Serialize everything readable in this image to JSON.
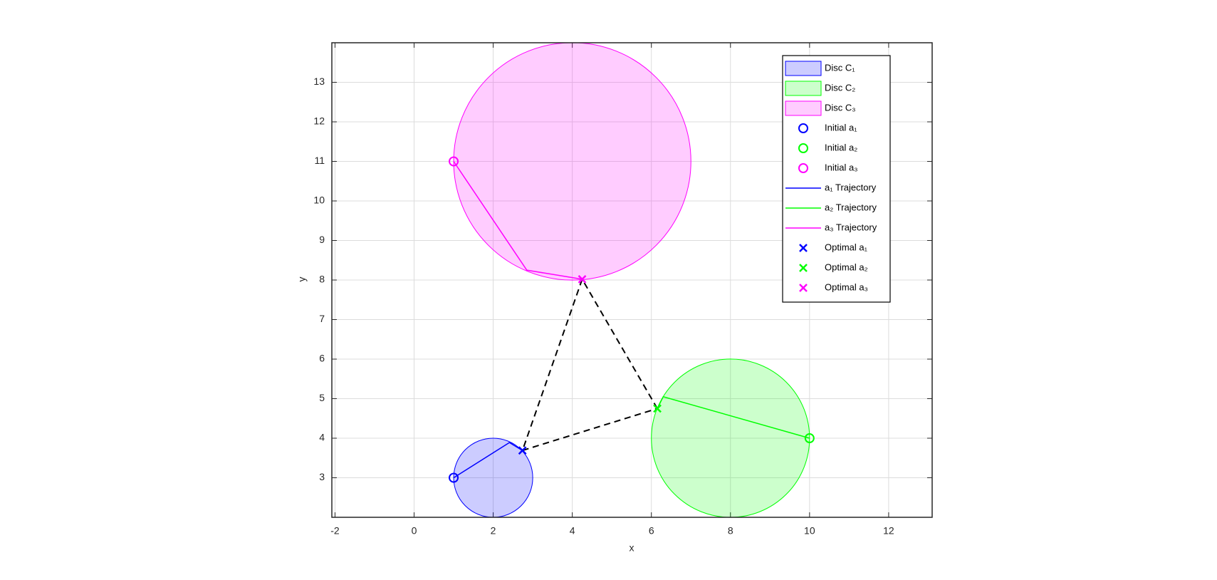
{
  "chart_data": {
    "type": "scatter",
    "xlabel": "x",
    "ylabel": "y",
    "xlim": [
      -2.08,
      13.1
    ],
    "ylim": [
      2,
      14
    ],
    "xticks": [
      -2,
      0,
      2,
      4,
      6,
      8,
      10,
      12
    ],
    "yticks": [
      3,
      4,
      5,
      6,
      7,
      8,
      9,
      10,
      11,
      12,
      13
    ],
    "grid": true,
    "legend": "top-right",
    "series": [
      {
        "name": "Disc C₁",
        "kind": "disc",
        "color": "#0000ff",
        "alpha": 0.2,
        "x": [
          2
        ],
        "values": [
          3
        ],
        "radius": 1
      },
      {
        "name": "Disc C₂",
        "kind": "disc",
        "color": "#00ff00",
        "alpha": 0.2,
        "x": [
          8
        ],
        "values": [
          4
        ],
        "radius": 2
      },
      {
        "name": "Disc C₃",
        "kind": "disc",
        "color": "#ff00ff",
        "alpha": 0.2,
        "x": [
          4
        ],
        "values": [
          11
        ],
        "radius": 3
      },
      {
        "name": "Initial a₁",
        "kind": "circle",
        "color": "#0000ff",
        "x": [
          1
        ],
        "values": [
          3
        ]
      },
      {
        "name": "Initial a₂",
        "kind": "circle",
        "color": "#00ff00",
        "x": [
          10
        ],
        "values": [
          4
        ]
      },
      {
        "name": "Initial a₃",
        "kind": "circle",
        "color": "#ff00ff",
        "x": [
          1
        ],
        "values": [
          11
        ]
      },
      {
        "name": "a₁ Trajectory",
        "kind": "line",
        "color": "#0000ff",
        "x": [
          1,
          2.41,
          2.74
        ],
        "values": [
          3,
          3.89,
          3.69
        ]
      },
      {
        "name": "a₂ Trajectory",
        "kind": "line",
        "color": "#00ff00",
        "x": [
          10,
          6.3,
          6.15
        ],
        "values": [
          4,
          5.05,
          4.75
        ]
      },
      {
        "name": "a₃ Trajectory",
        "kind": "line",
        "color": "#ff00ff",
        "x": [
          1,
          2.85,
          4.25
        ],
        "values": [
          11,
          8.25,
          8.02
        ]
      },
      {
        "name": "Optimal a₁",
        "kind": "cross",
        "color": "#0000ff",
        "x": [
          2.74
        ],
        "values": [
          3.69
        ]
      },
      {
        "name": "Optimal a₂",
        "kind": "cross",
        "color": "#00ff00",
        "x": [
          6.15
        ],
        "values": [
          4.75
        ]
      },
      {
        "name": "Optimal a₃",
        "kind": "cross",
        "color": "#ff00ff",
        "x": [
          4.25
        ],
        "values": [
          8.02
        ]
      }
    ]
  }
}
